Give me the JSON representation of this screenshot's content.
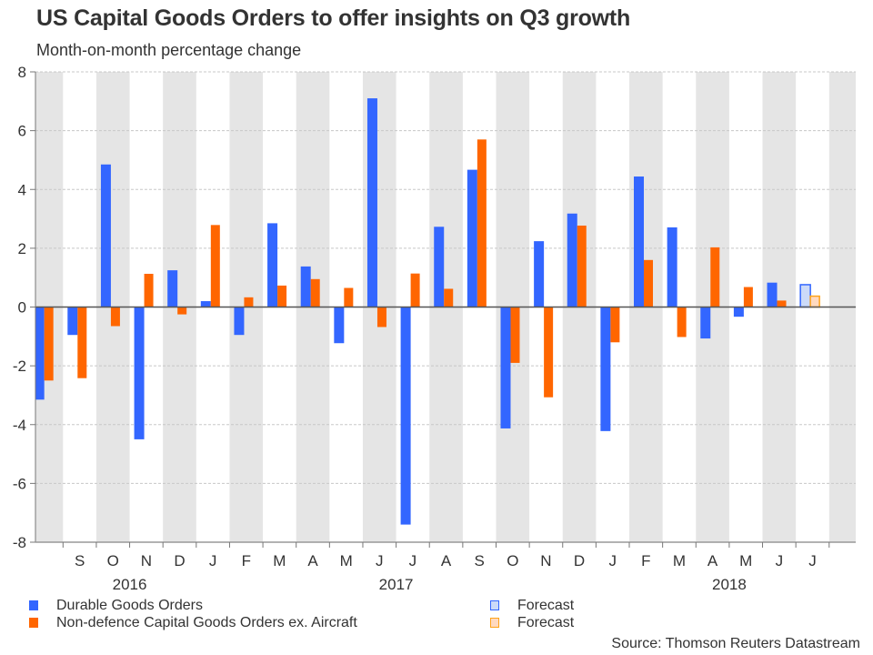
{
  "header": {
    "title": "US Capital Goods Orders to offer insights on Q3 growth",
    "subtitle": "Month-on-month percentage change"
  },
  "source": "Source: Thomson Reuters Datastream",
  "colors": {
    "durable": "#3366ff",
    "nondefence": "#ff6600",
    "forecast_durable_fill": "#ccdaf8",
    "forecast_durable_border": "#3366ff",
    "forecast_nondefence_fill": "#ffd9bf",
    "forecast_nondefence_border": "#ffa31a",
    "band": "#e5e5e5",
    "zero_line": "#555555",
    "grid": "#c8c8c8"
  },
  "legend": [
    {
      "label": "Durable Goods Orders",
      "key": "durable"
    },
    {
      "label": "Non-defence Capital Goods Orders ex. Aircraft",
      "key": "nondefence"
    },
    {
      "label": "Forecast",
      "key": "forecast_durable"
    },
    {
      "label": "Forecast",
      "key": "forecast_nondefence"
    }
  ],
  "chart_data": {
    "type": "bar",
    "title": "US Capital Goods Orders to offer insights on Q3 growth",
    "subtitle": "Month-on-month percentage change",
    "xlabel": "",
    "ylabel": "",
    "ylim": [
      -8,
      8
    ],
    "yticks": [
      -8,
      -6,
      -4,
      -2,
      0,
      2,
      4,
      6,
      8
    ],
    "grid": true,
    "legend_position": "bottom",
    "categories": [
      "Aug 2016",
      "Sep 2016",
      "Oct 2016",
      "Nov 2016",
      "Dec 2016",
      "Jan 2017",
      "Feb 2017",
      "Mar 2017",
      "Apr 2017",
      "May 2017",
      "Jun 2017",
      "Jul 2017",
      "Aug 2017",
      "Sep 2017",
      "Oct 2017",
      "Nov 2017",
      "Dec 2017",
      "Jan 2018",
      "Feb 2018",
      "Mar 2018",
      "Apr 2018",
      "May 2018",
      "Jun 2018",
      "Jul 2018",
      "Aug 2018"
    ],
    "tick_labels": [
      "",
      "S",
      "O",
      "N",
      "D",
      "J",
      "F",
      "M",
      "A",
      "M",
      "J",
      "J",
      "A",
      "S",
      "O",
      "N",
      "D",
      "J",
      "F",
      "M",
      "A",
      "M",
      "J",
      "J",
      ""
    ],
    "year_labels": [
      {
        "label": "2016",
        "at_category": 2.5
      },
      {
        "label": "2017",
        "at_category": 10.5
      },
      {
        "label": "2018",
        "at_category": 20.5
      }
    ],
    "series": [
      {
        "name": "Durable Goods Orders",
        "key": "durable",
        "values": [
          -3.15,
          -0.95,
          4.85,
          -4.5,
          1.25,
          0.2,
          -0.95,
          2.85,
          1.38,
          -1.23,
          7.1,
          -7.4,
          2.73,
          4.67,
          -4.13,
          2.24,
          3.18,
          -4.22,
          4.44,
          2.71,
          -1.07,
          -0.33,
          0.83,
          null,
          null
        ]
      },
      {
        "name": "Non-defence Capital Goods Orders ex. Aircraft",
        "key": "nondefence",
        "values": [
          -2.5,
          -2.42,
          -0.65,
          1.13,
          -0.25,
          2.79,
          0.33,
          0.73,
          0.95,
          0.65,
          -0.68,
          1.14,
          0.62,
          5.7,
          -1.9,
          -3.07,
          2.77,
          -1.2,
          1.6,
          -1.02,
          2.03,
          0.68,
          0.22,
          null,
          null
        ]
      },
      {
        "name": "Forecast",
        "key": "forecast_durable",
        "values": [
          null,
          null,
          null,
          null,
          null,
          null,
          null,
          null,
          null,
          null,
          null,
          null,
          null,
          null,
          null,
          null,
          null,
          null,
          null,
          null,
          null,
          null,
          null,
          0.76,
          null
        ]
      },
      {
        "name": "Forecast",
        "key": "forecast_nondefence",
        "values": [
          null,
          null,
          null,
          null,
          null,
          null,
          null,
          null,
          null,
          null,
          null,
          null,
          null,
          null,
          null,
          null,
          null,
          null,
          null,
          null,
          null,
          null,
          null,
          0.37,
          null
        ]
      }
    ]
  }
}
